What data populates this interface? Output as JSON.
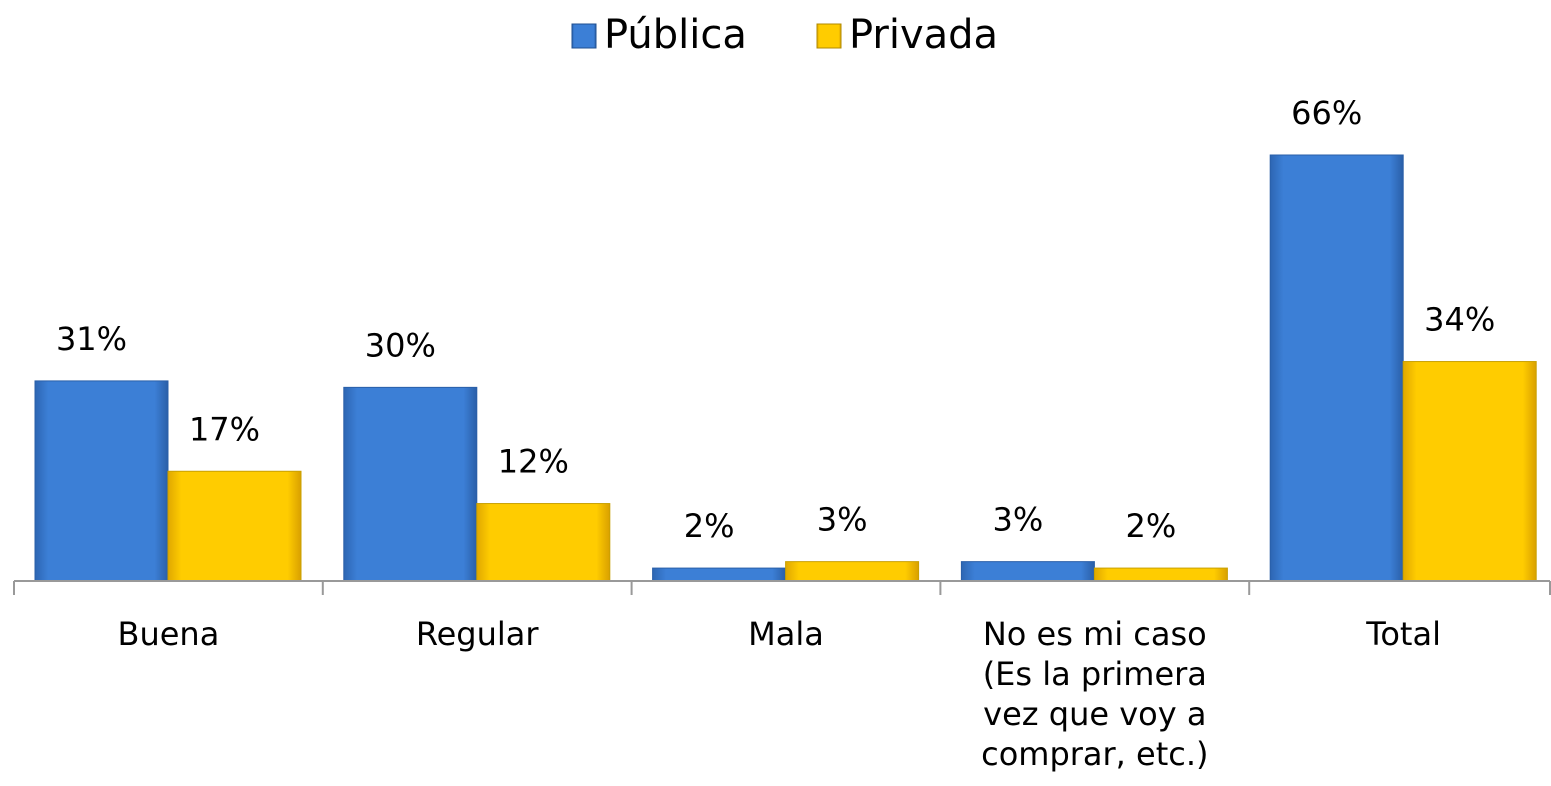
{
  "chart_data": {
    "type": "bar",
    "categories": [
      "Buena",
      "Regular",
      "Mala",
      "No es mi caso (Es la primera vez que voy a comprar, etc.)",
      "Total"
    ],
    "series": [
      {
        "name": "Pública",
        "color": "#3c7fd6",
        "values": [
          31,
          30,
          2,
          3,
          66
        ],
        "value_labels": [
          "31%",
          "30%",
          "2%",
          "3%",
          "66%"
        ]
      },
      {
        "name": "Privada",
        "color": "#ffcc00",
        "values": [
          17,
          12,
          3,
          2,
          34
        ],
        "value_labels": [
          "17%",
          "12%",
          "3%",
          "2%",
          "34%"
        ]
      }
    ],
    "legend": "top"
  }
}
